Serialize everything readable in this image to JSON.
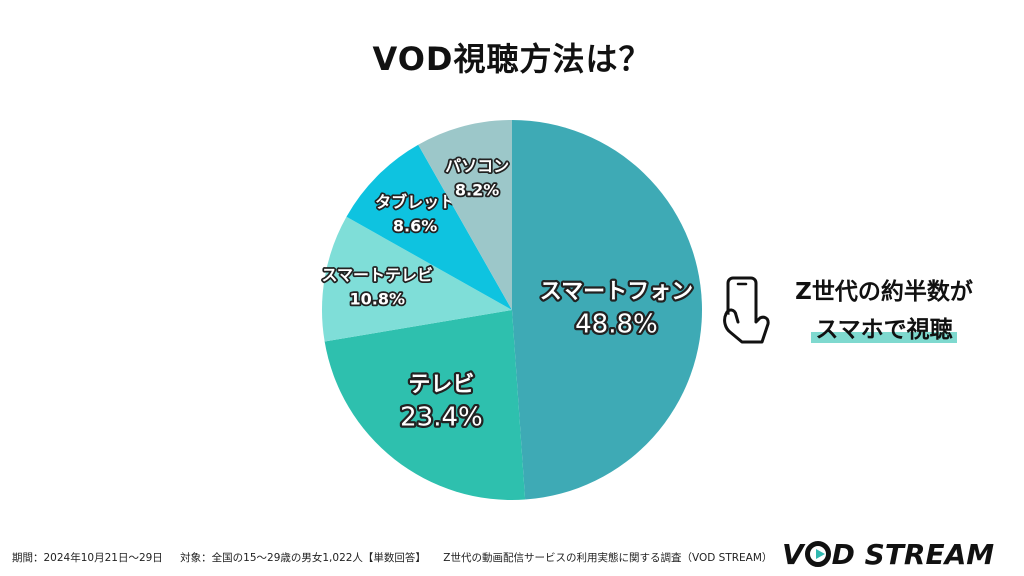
{
  "title": "VOD視聴方法は？",
  "chart_data": {
    "type": "pie",
    "title": "VOD視聴方法は？",
    "slices": [
      {
        "label": "スマートフォン",
        "value": 48.8,
        "value_text": "48.8%",
        "color": "#3eaab5"
      },
      {
        "label": "テレビ",
        "value": 23.4,
        "value_text": "23.4%",
        "color": "#2ec0ae"
      },
      {
        "label": "スマートテレビ",
        "value": 10.8,
        "value_text": "10.8%",
        "color": "#7fded8"
      },
      {
        "label": "タブレット",
        "value": 8.6,
        "value_text": "8.6%",
        "color": "#0ec3e0"
      },
      {
        "label": "パソコン",
        "value": 8.2,
        "value_text": "8.2%",
        "color": "#9cc7c9"
      }
    ],
    "start_angle": "12 o'clock",
    "direction": "clockwise"
  },
  "callout": {
    "icon": "smartphone-hand-icon",
    "line1": "Z世代の約半数が",
    "line2": "スマホで視聴",
    "highlight_color": "#7fd9cf"
  },
  "footer": {
    "period": "期間：2024年10月21日〜29日",
    "target": "対象：全国の15〜29歳の男女1,022人【単数回答】",
    "survey": "Z世代の動画配信サービスの利用実態に関する調査（VOD STREAM）"
  },
  "logo": {
    "text_before": "V",
    "text_after": "D STREAM",
    "accent": "#30b8b0"
  }
}
